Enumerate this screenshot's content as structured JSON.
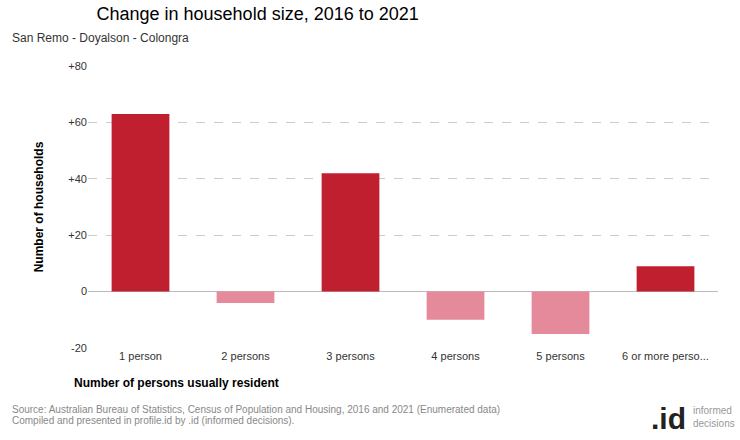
{
  "chart_data": {
    "type": "bar",
    "title": "Change in household size, 2016 to 2021",
    "subtitle": "San Remo - Doyalson - Colongra",
    "x_label": "Number of persons usually resident",
    "y_label": "Number of households",
    "categories": [
      "1 person",
      "2 persons",
      "3 persons",
      "4 persons",
      "5 persons",
      "6 or more perso..."
    ],
    "values": [
      63,
      -4,
      42,
      -10,
      -15,
      9
    ],
    "colors": [
      "#c01f2f",
      "#e48a9a",
      "#c01f2f",
      "#e48a9a",
      "#e48a9a",
      "#c01f2f"
    ],
    "ylim": [
      -20,
      80
    ],
    "yticks": [
      -20,
      0,
      {
        "value": 20,
        "label": "+20"
      },
      {
        "value": 40,
        "label": "+40"
      },
      {
        "value": 60,
        "label": "+60"
      },
      {
        "value": 80,
        "label": "+80"
      }
    ],
    "grid": true,
    "source": [
      "Source: Australian Bureau of Statistics, Census of Population and Housing, 2016 and 2021 (Enumerated data)",
      "Compiled and presented in profile.id by .id (informed decisions)."
    ],
    "logo": {
      "mark": ".id",
      "text": "informed decisions"
    }
  }
}
